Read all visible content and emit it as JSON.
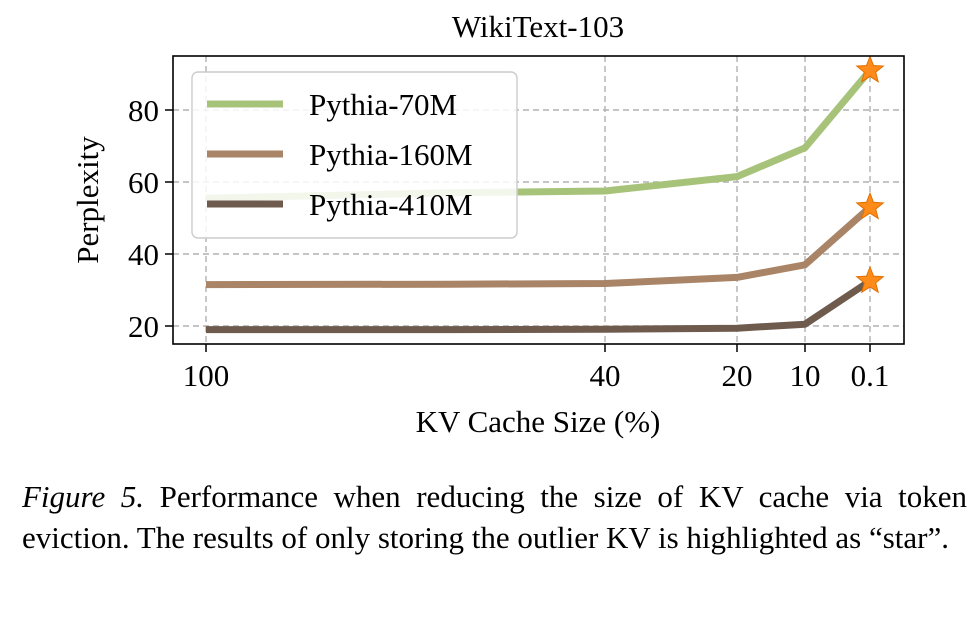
{
  "chart_data": {
    "type": "line",
    "title": "WikiText-103",
    "xlabel": "KV Cache Size (%)",
    "ylabel": "Perplexity",
    "categories": [
      "100",
      "40",
      "20",
      "10",
      "0.1"
    ],
    "x_scale": "log of reduction (categorical spacing)",
    "ylim": [
      15,
      95
    ],
    "yticks": [
      20,
      40,
      60,
      80
    ],
    "grid": true,
    "legend_position": "top-left",
    "series": [
      {
        "name": "Pythia-70M",
        "color": "#a7c37a",
        "values": [
          55.5,
          57.0,
          57.5,
          61.5,
          69.5,
          91.0
        ],
        "x": [
          "100",
          "50",
          "40",
          "20",
          "10",
          "0.1"
        ],
        "star": 91.0
      },
      {
        "name": "Pythia-160M",
        "color": "#a98467",
        "values": [
          31.5,
          31.6,
          31.8,
          33.5,
          37.0,
          53.0
        ],
        "x": [
          "100",
          "50",
          "40",
          "20",
          "10",
          "0.1"
        ],
        "star": 53.0
      },
      {
        "name": "Pythia-410M",
        "color": "#6f5b4e",
        "values": [
          19.0,
          19.0,
          19.1,
          19.4,
          20.5,
          32.5
        ],
        "x": [
          "100",
          "50",
          "40",
          "20",
          "10",
          "0.1"
        ],
        "star": 32.5
      }
    ],
    "star_color": "#ff8c1a"
  },
  "caption": {
    "figure_label": "Figure 5.",
    "text": "Performance when reducing the size of KV cache via token eviction. The results of only storing the outlier KV is highlighted as “star”."
  }
}
